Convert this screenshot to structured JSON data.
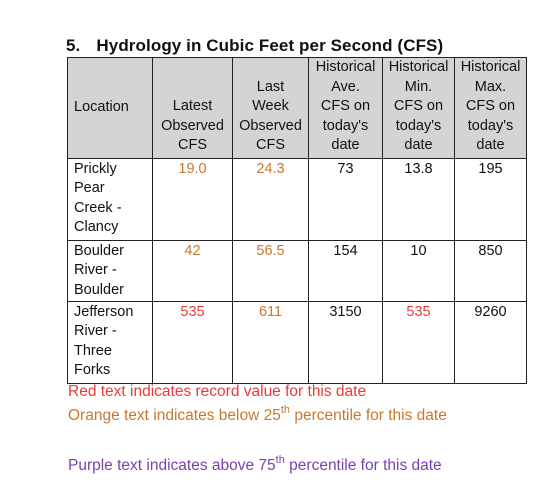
{
  "section": {
    "number": "5.",
    "title": "Hydrology in Cubic Feet per Second (CFS)"
  },
  "table": {
    "headers": {
      "location": "Location",
      "latest": [
        "Latest",
        "Observed",
        "CFS"
      ],
      "last_week": [
        "Last",
        "Week",
        "Observed",
        "CFS"
      ],
      "hist_ave": [
        "Historical",
        "Ave.",
        "CFS on",
        "today's",
        "date"
      ],
      "hist_min": [
        "Historical",
        "Min.",
        "CFS on",
        "today's",
        "date"
      ],
      "hist_max": [
        "Historical",
        "Max.",
        "CFS on",
        "today's",
        "date"
      ]
    },
    "rows": [
      {
        "location": [
          "Prickly",
          "Pear",
          "Creek -",
          "Clancy"
        ],
        "latest": "19.0",
        "last_week": "24.3",
        "hist_ave": "73",
        "hist_min": "13.8",
        "hist_max": "195"
      },
      {
        "location": [
          "Boulder",
          "River -",
          "Boulder"
        ],
        "latest": "42",
        "last_week": "56.5",
        "hist_ave": "154",
        "hist_min": "10",
        "hist_max": "850"
      },
      {
        "location": [
          "Jefferson",
          "River -",
          "Three",
          "Forks"
        ],
        "latest": "535",
        "last_week": "611",
        "hist_ave": "3150",
        "hist_min": "535",
        "hist_max": "9260"
      }
    ]
  },
  "legend": {
    "red": "Red text indicates record value for this date",
    "orange_pre": "Orange text indicates below 25",
    "orange_sup": "th",
    "orange_post": " percentile for this date",
    "purple_pre": "Purple text indicates above 75",
    "purple_sup": "th",
    "purple_post": " percentile for this date"
  },
  "colors": {
    "red": "#e63b3b",
    "orange": "#c8782e",
    "purple": "#7b3fb0",
    "header_bg": "#d4d4d4"
  }
}
